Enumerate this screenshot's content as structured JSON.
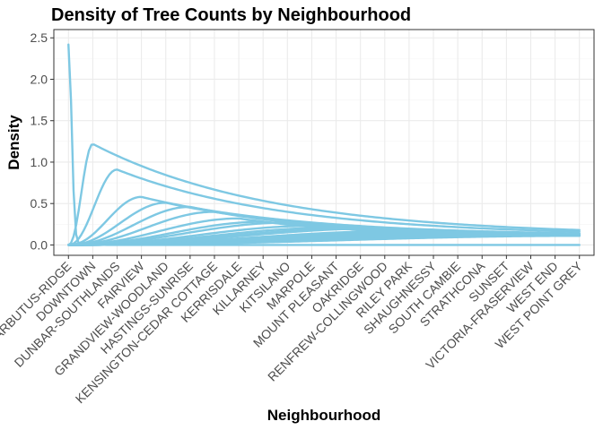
{
  "chart_data": {
    "type": "line",
    "title": "Density of Tree Counts by Neighbourhood",
    "xlabel": "Neighbourhood",
    "ylabel": "Density",
    "categories": [
      "ARBUTUS-RIDGE",
      "DOWNTOWN",
      "DUNBAR-SOUTHLANDS",
      "FAIRVIEW",
      "GRANDVIEW-WOODLAND",
      "HASTINGS-SUNRISE",
      "KENSINGTON-CEDAR COTTAGE",
      "KERRISDALE",
      "KILLARNEY",
      "KITSILANO",
      "MARPOLE",
      "MOUNT PLEASANT",
      "OAKRIDGE",
      "RENFREW-COLLINGWOOD",
      "RILEY PARK",
      "SHAUGHNESSY",
      "SOUTH CAMBIE",
      "STRATHCONA",
      "SUNSET",
      "VICTORIA-FRASERVIEW",
      "WEST END",
      "WEST POINT GREY"
    ],
    "y_ticks": [
      0.0,
      0.5,
      1.0,
      1.5,
      2.0,
      2.5
    ],
    "y_tick_labels": [
      "0.0",
      "0.5",
      "1.0",
      "1.5",
      "2.0",
      "2.5"
    ],
    "ylim": [
      -0.125,
      2.6
    ],
    "line_color": "#7ec8e3",
    "grid": true,
    "series": [
      {
        "start": 1,
        "peak_x": 1,
        "peak_y": 2.42
      },
      {
        "start": 1,
        "peak_x": 2,
        "peak_y": 1.22
      },
      {
        "start": 1,
        "peak_x": 3,
        "peak_y": 0.91
      },
      {
        "start": 1,
        "peak_x": 4,
        "peak_y": 0.58
      },
      {
        "start": 1,
        "peak_x": 5,
        "peak_y": 0.51
      },
      {
        "start": 1,
        "peak_x": 6,
        "peak_y": 0.46
      },
      {
        "start": 1,
        "peak_x": 7,
        "peak_y": 0.4
      },
      {
        "start": 1,
        "peak_x": 8,
        "peak_y": 0.32
      },
      {
        "start": 1,
        "peak_x": 9,
        "peak_y": 0.28
      },
      {
        "start": 1,
        "peak_x": 10,
        "peak_y": 0.27
      },
      {
        "start": 1,
        "peak_x": 11,
        "peak_y": 0.23
      },
      {
        "start": 1,
        "peak_x": 12,
        "peak_y": 0.21
      },
      {
        "start": 1,
        "peak_x": 13,
        "peak_y": 0.2
      },
      {
        "start": 1,
        "peak_x": 14,
        "peak_y": 0.2
      },
      {
        "start": 1,
        "peak_x": 15,
        "peak_y": 0.17
      },
      {
        "start": 1,
        "peak_x": 16,
        "peak_y": 0.16
      },
      {
        "start": 1,
        "peak_x": 17,
        "peak_y": 0.15
      },
      {
        "start": 1,
        "peak_x": 18,
        "peak_y": 0.14
      },
      {
        "start": 1,
        "peak_x": 19,
        "peak_y": 0.13
      },
      {
        "start": 1,
        "peak_x": 20,
        "peak_y": 0.12
      },
      {
        "start": 1,
        "peak_x": 21,
        "peak_y": 0.115
      },
      {
        "start": 1,
        "peak_x": 22,
        "peak_y": 0.11
      }
    ]
  }
}
